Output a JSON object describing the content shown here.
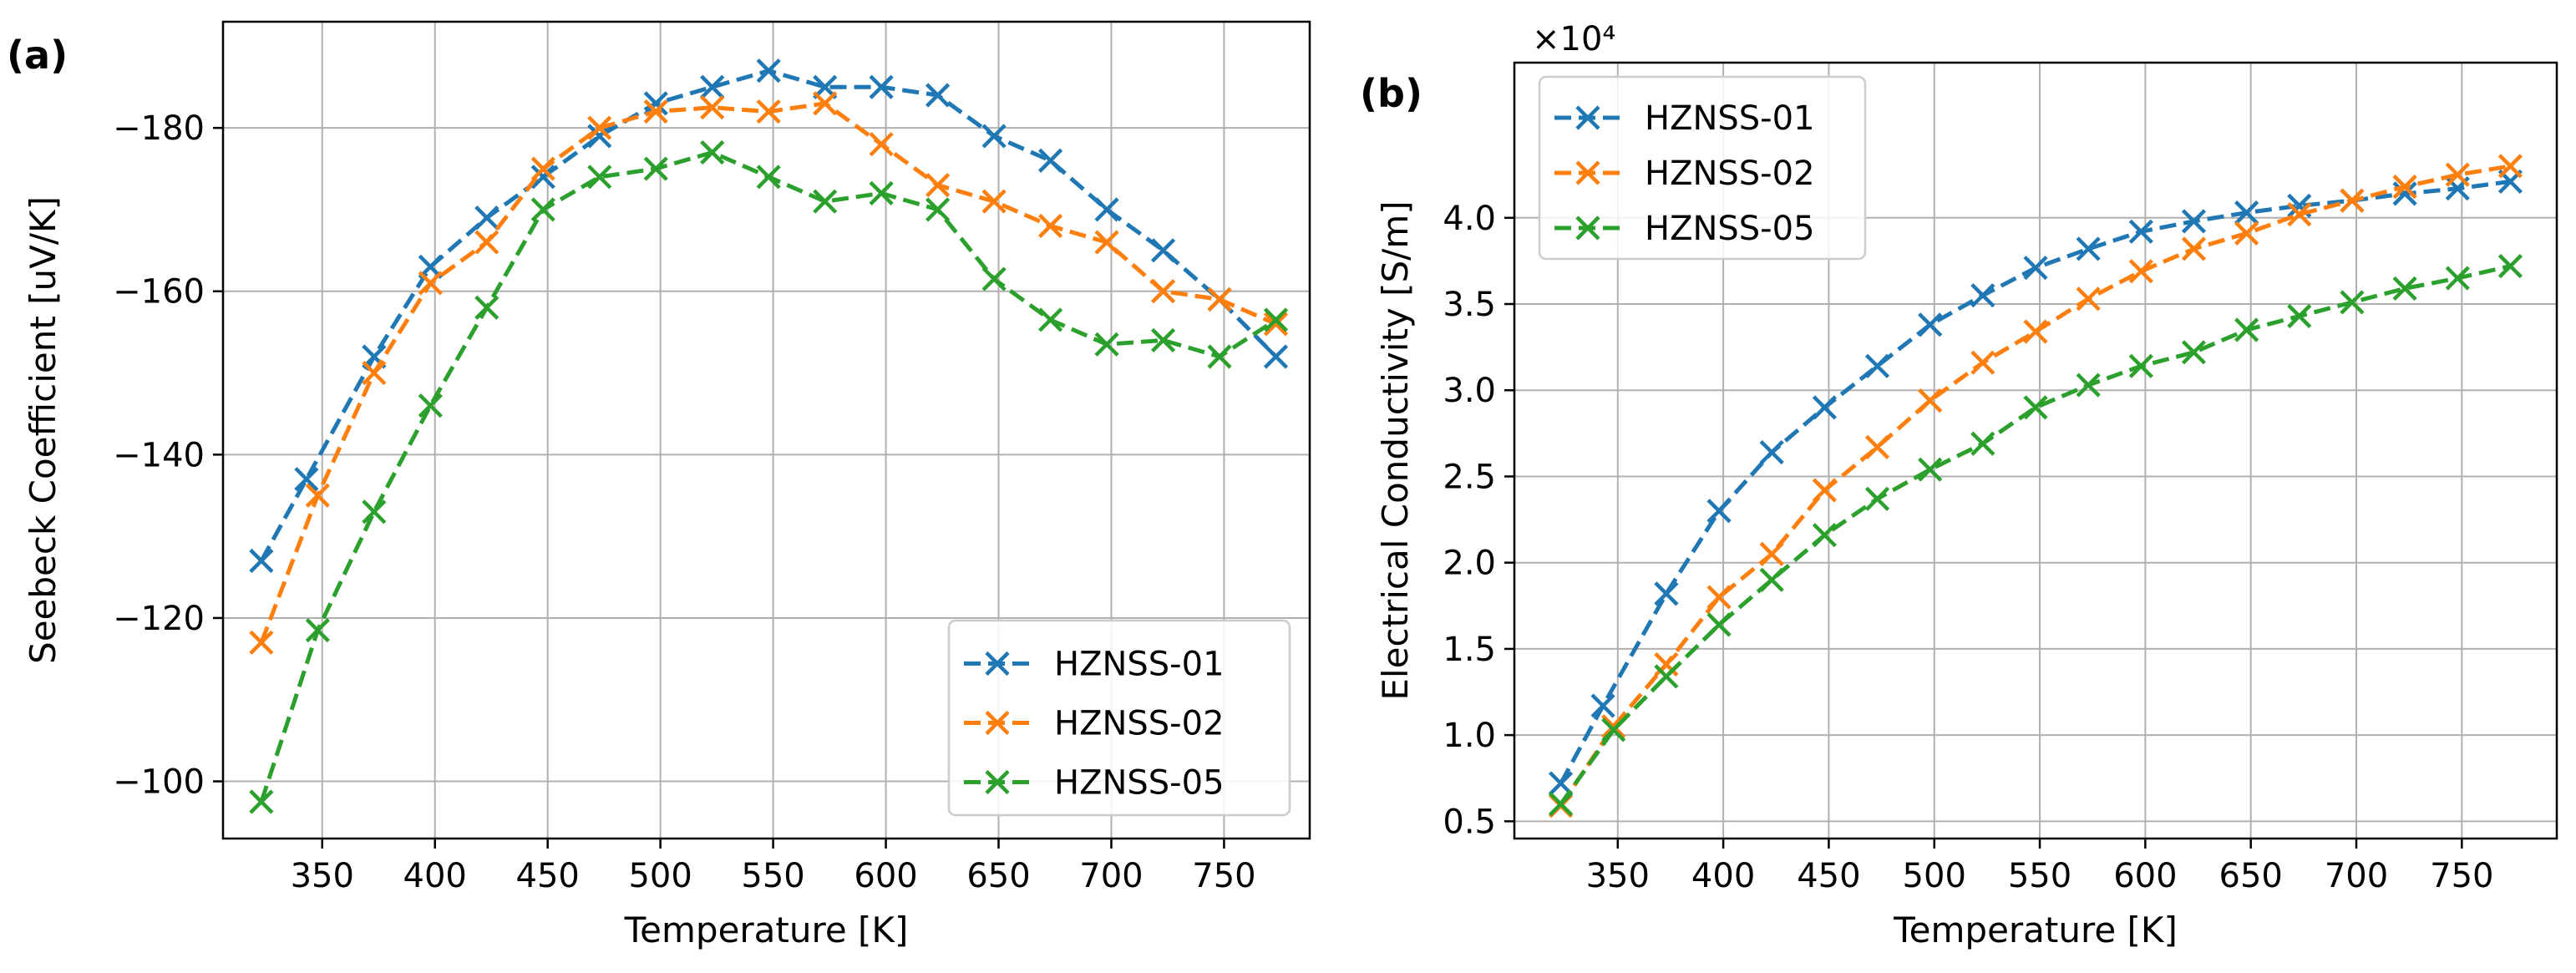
{
  "chart_data": [
    {
      "type": "line",
      "panel_label": "(a)",
      "xlabel": "Temperature [K]",
      "ylabel": "Seebeck Coefficient [uV/K]",
      "xlim": [
        306,
        788
      ],
      "ylim": [
        -93,
        -193
      ],
      "y_axis_inverted": true,
      "xticks": [
        350,
        400,
        450,
        500,
        550,
        600,
        650,
        700,
        750
      ],
      "yticks": [
        -100,
        -120,
        -140,
        -160,
        -180
      ],
      "xtick_labels": [
        "350",
        "400",
        "450",
        "500",
        "550",
        "600",
        "650",
        "700",
        "750"
      ],
      "ytick_labels": [
        "−100",
        "−120",
        "−140",
        "−160",
        "−180"
      ],
      "grid": true,
      "legend_position": "lower-right",
      "series": [
        {
          "name": "HZNSS-01",
          "color": "#1f77b4",
          "marker": "x",
          "linestyle": "dashed",
          "x": [
            323,
            343,
            373,
            398,
            423,
            448,
            473,
            498,
            523,
            548,
            573,
            598,
            623,
            648,
            673,
            698,
            723,
            748,
            773
          ],
          "y": [
            -127,
            -137,
            -152,
            -163,
            -169,
            -174,
            -179,
            -183,
            -185,
            -187,
            -185,
            -185,
            -184,
            -179,
            -176,
            -170,
            -165,
            -159,
            -152
          ]
        },
        {
          "name": "HZNSS-02",
          "color": "#ff7f0e",
          "marker": "x",
          "linestyle": "dashed",
          "x": [
            323,
            348,
            373,
            398,
            423,
            448,
            473,
            498,
            523,
            548,
            573,
            598,
            623,
            648,
            673,
            698,
            723,
            748,
            773
          ],
          "y": [
            -117,
            -135,
            -150,
            -161,
            -166,
            -175,
            -180,
            -182,
            -182.5,
            -182,
            -183,
            -178,
            -173,
            -171,
            -168,
            -166,
            -160,
            -159,
            -156
          ]
        },
        {
          "name": "HZNSS-05",
          "color": "#2ca02c",
          "marker": "x",
          "linestyle": "dashed",
          "x": [
            323,
            348,
            373,
            398,
            423,
            448,
            473,
            498,
            523,
            548,
            573,
            598,
            623,
            648,
            673,
            698,
            723,
            748,
            773
          ],
          "y": [
            -97.5,
            -118.5,
            -133,
            -146,
            -158,
            -170,
            -174,
            -175,
            -177,
            -174,
            -171,
            -172,
            -170,
            -161.5,
            -156.5,
            -153.5,
            -154,
            -152,
            -156.5
          ]
        }
      ]
    },
    {
      "type": "line",
      "panel_label": "(b)",
      "xlabel": "Temperature [K]",
      "ylabel": "Electrical Conductivity [S/m]",
      "y_multiplier": "×10⁴",
      "xlim": [
        301,
        795
      ],
      "ylim": [
        0.4,
        4.9
      ],
      "xticks": [
        350,
        400,
        450,
        500,
        550,
        600,
        650,
        700,
        750
      ],
      "yticks": [
        0.5,
        1.0,
        1.5,
        2.0,
        2.5,
        3.0,
        3.5,
        4.0
      ],
      "xtick_labels": [
        "350",
        "400",
        "450",
        "500",
        "550",
        "600",
        "650",
        "700",
        "750"
      ],
      "ytick_labels": [
        "0.5",
        "1.0",
        "1.5",
        "2.0",
        "2.5",
        "3.0",
        "3.5",
        "4.0"
      ],
      "grid": true,
      "legend_position": "upper-left",
      "series": [
        {
          "name": "HZNSS-01",
          "color": "#1f77b4",
          "marker": "x",
          "linestyle": "dashed",
          "x": [
            323,
            343,
            373,
            398,
            423,
            448,
            473,
            498,
            523,
            548,
            573,
            598,
            623,
            648,
            673,
            698,
            723,
            748,
            773
          ],
          "y": [
            0.72,
            1.17,
            1.82,
            2.3,
            2.64,
            2.9,
            3.14,
            3.38,
            3.55,
            3.71,
            3.82,
            3.92,
            3.98,
            4.03,
            4.07,
            4.1,
            4.14,
            4.17,
            4.21
          ]
        },
        {
          "name": "HZNSS-02",
          "color": "#ff7f0e",
          "marker": "x",
          "linestyle": "dashed",
          "x": [
            323,
            348,
            373,
            398,
            423,
            448,
            473,
            498,
            523,
            548,
            573,
            598,
            623,
            648,
            673,
            698,
            723,
            748,
            773
          ],
          "y": [
            0.59,
            1.05,
            1.41,
            1.8,
            2.05,
            2.42,
            2.67,
            2.94,
            3.16,
            3.34,
            3.53,
            3.69,
            3.82,
            3.91,
            4.02,
            4.1,
            4.18,
            4.25,
            4.3
          ]
        },
        {
          "name": "HZNSS-05",
          "color": "#2ca02c",
          "marker": "x",
          "linestyle": "dashed",
          "x": [
            323,
            348,
            373,
            398,
            423,
            448,
            473,
            498,
            523,
            548,
            573,
            598,
            623,
            648,
            673,
            698,
            723,
            748,
            773
          ],
          "y": [
            0.6,
            1.03,
            1.34,
            1.64,
            1.9,
            2.16,
            2.37,
            2.54,
            2.69,
            2.9,
            3.03,
            3.14,
            3.22,
            3.35,
            3.43,
            3.51,
            3.59,
            3.65,
            3.72
          ]
        }
      ]
    }
  ]
}
